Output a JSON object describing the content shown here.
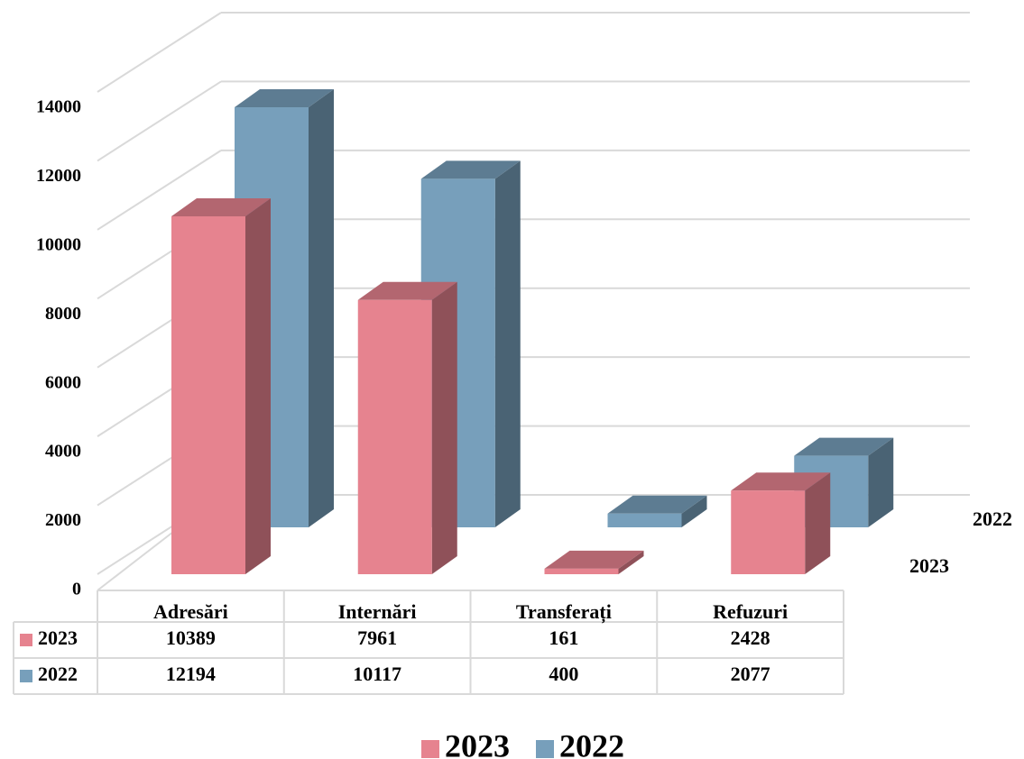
{
  "chart_data": {
    "type": "bar3d",
    "categories": [
      "Adresări",
      "Internări",
      "Transferați",
      "Refuzuri"
    ],
    "series": [
      {
        "name": "2023",
        "color": "#e6838f",
        "values": [
          10389,
          7961,
          161,
          2428
        ]
      },
      {
        "name": "2022",
        "color": "#779fbb",
        "values": [
          12194,
          10117,
          400,
          2077
        ]
      }
    ],
    "ylim": [
      0,
      14000
    ],
    "yticks": [
      0,
      2000,
      4000,
      6000,
      8000,
      10000,
      12000,
      14000
    ],
    "grid": true,
    "legend": "bottom",
    "data_table": true
  }
}
